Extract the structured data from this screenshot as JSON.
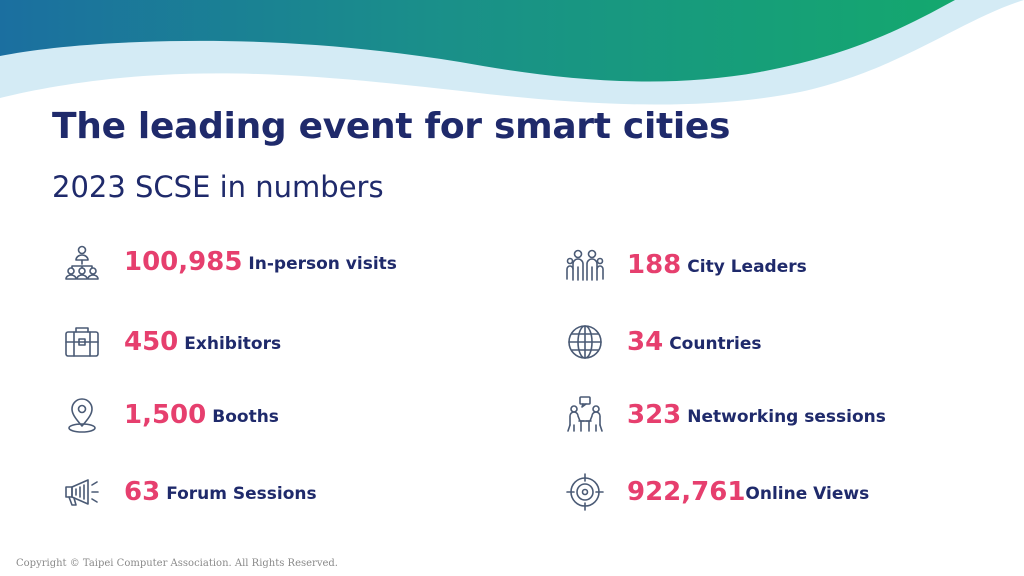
{
  "title": "The leading event for smart cities",
  "subtitle": "2023 SCSE in numbers",
  "colors": {
    "accent": "#e63f6e",
    "navy": "#1f2a6b",
    "teal": "#1a9a86",
    "light_blue": "#cfe8f3",
    "icon": "#4a5a75"
  },
  "stats_left": [
    {
      "number": "100,985",
      "label": "In-person visits",
      "icon": "people-network-icon"
    },
    {
      "number": "450",
      "label": "Exhibitors",
      "icon": "briefcase-icon"
    },
    {
      "number": "1,500",
      "label": "Booths",
      "icon": "location-pin-icon"
    },
    {
      "number": "63",
      "label": "Forum Sessions",
      "icon": "megaphone-icon"
    }
  ],
  "stats_right": [
    {
      "number": "188",
      "label": "City Leaders",
      "icon": "leaders-group-icon"
    },
    {
      "number": "34",
      "label": "Countries",
      "icon": "globe-icon"
    },
    {
      "number": "323",
      "label": "Networking sessions",
      "icon": "conversation-icon"
    },
    {
      "number": "922,761",
      "label": "Online Views",
      "icon": "target-icon"
    }
  ],
  "footer": "Copyright © Taipei Computer Association. All Rights Reserved."
}
